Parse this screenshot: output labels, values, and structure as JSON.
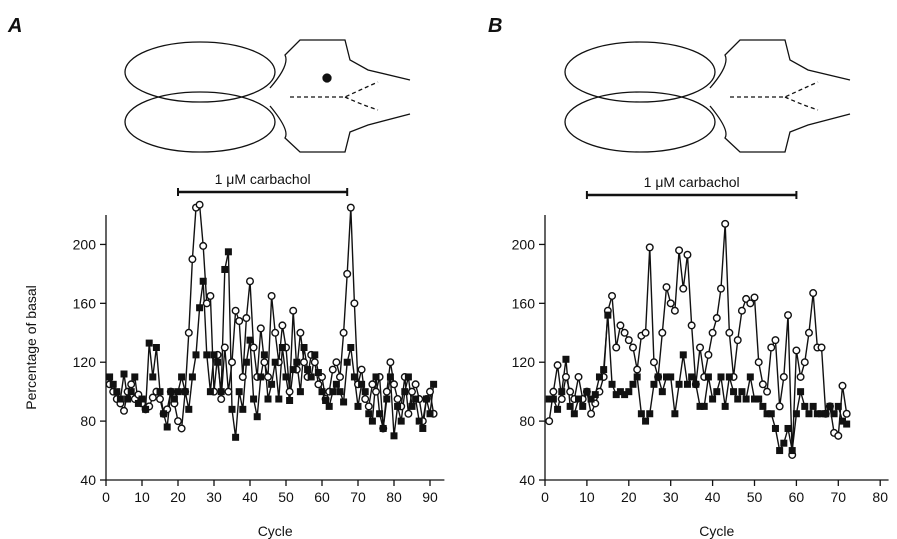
{
  "chart_data": [
    {
      "type": "line",
      "panel_label": "A",
      "annotation": {
        "text": "1 μM carbachol",
        "x_range": [
          20,
          67
        ]
      },
      "xlabel": "Cycle",
      "ylabel": "Percentage of basal",
      "xlim": [
        0,
        94
      ],
      "xticks": [
        0,
        10,
        20,
        30,
        40,
        50,
        60,
        70,
        80,
        90
      ],
      "ylim": [
        40,
        220
      ],
      "yticks": [
        40,
        80,
        120,
        160,
        200
      ],
      "x": [
        1,
        2,
        3,
        4,
        5,
        6,
        7,
        8,
        9,
        10,
        11,
        12,
        13,
        14,
        15,
        16,
        17,
        18,
        19,
        20,
        21,
        22,
        23,
        24,
        25,
        26,
        27,
        28,
        29,
        30,
        31,
        32,
        33,
        34,
        35,
        36,
        37,
        38,
        39,
        40,
        41,
        42,
        43,
        44,
        45,
        46,
        47,
        48,
        49,
        50,
        51,
        52,
        53,
        54,
        55,
        56,
        57,
        58,
        59,
        60,
        61,
        62,
        63,
        64,
        65,
        66,
        67,
        68,
        69,
        70,
        71,
        72,
        73,
        74,
        75,
        76,
        77,
        78,
        79,
        80,
        81,
        82,
        83,
        84,
        85,
        86,
        87,
        88,
        89,
        90,
        91
      ],
      "series": [
        {
          "marker": "circle-open",
          "color": "#111111",
          "values": [
            105,
            100,
            95,
            92,
            87,
            100,
            105,
            95,
            98,
            92,
            88,
            90,
            96,
            100,
            95,
            85,
            88,
            100,
            92,
            80,
            75,
            100,
            140,
            190,
            225,
            227,
            199,
            160,
            165,
            100,
            125,
            95,
            130,
            100,
            120,
            155,
            148,
            110,
            150,
            175,
            130,
            110,
            143,
            120,
            110,
            165,
            140,
            120,
            145,
            130,
            100,
            155,
            115,
            140,
            120,
            110,
            125,
            120,
            105,
            110,
            95,
            100,
            115,
            120,
            110,
            140,
            180,
            225,
            160,
            105,
            115,
            95,
            90,
            105,
            100,
            110,
            75,
            100,
            120,
            105,
            95,
            90,
            110,
            85,
            100,
            105,
            95,
            80,
            95,
            100,
            85
          ]
        },
        {
          "marker": "square",
          "color": "#111111",
          "values": [
            110,
            105,
            100,
            95,
            112,
            95,
            100,
            110,
            92,
            95,
            88,
            133,
            110,
            130,
            100,
            85,
            76,
            100,
            95,
            100,
            110,
            100,
            88,
            110,
            125,
            157,
            175,
            125,
            100,
            125,
            120,
            100,
            183,
            195,
            88,
            69,
            100,
            88,
            120,
            135,
            95,
            83,
            110,
            125,
            95,
            105,
            120,
            95,
            130,
            110,
            94,
            115,
            120,
            100,
            130,
            115,
            110,
            125,
            113,
            100,
            94,
            90,
            100,
            105,
            100,
            93,
            120,
            130,
            110,
            90,
            105,
            100,
            85,
            80,
            110,
            85,
            75,
            95,
            110,
            70,
            90,
            80,
            100,
            110,
            90,
            95,
            80,
            75,
            95,
            85,
            105
          ]
        }
      ]
    },
    {
      "type": "line",
      "panel_label": "B",
      "annotation": {
        "text": "1 μM carbachol",
        "x_range": [
          10,
          60
        ]
      },
      "xlabel": "Cycle",
      "xlim": [
        0,
        82
      ],
      "xticks": [
        0,
        10,
        20,
        30,
        40,
        50,
        60,
        70,
        80
      ],
      "ylim": [
        40,
        220
      ],
      "yticks": [
        40,
        80,
        120,
        160,
        200
      ],
      "x": [
        1,
        2,
        3,
        4,
        5,
        6,
        7,
        8,
        9,
        10,
        11,
        12,
        13,
        14,
        15,
        16,
        17,
        18,
        19,
        20,
        21,
        22,
        23,
        24,
        25,
        26,
        27,
        28,
        29,
        30,
        31,
        32,
        33,
        34,
        35,
        36,
        37,
        38,
        39,
        40,
        41,
        42,
        43,
        44,
        45,
        46,
        47,
        48,
        49,
        50,
        51,
        52,
        53,
        54,
        55,
        56,
        57,
        58,
        59,
        60,
        61,
        62,
        63,
        64,
        65,
        66,
        67,
        68,
        69,
        70,
        71,
        72
      ],
      "series": [
        {
          "marker": "circle-open",
          "color": "#111111",
          "values": [
            80,
            100,
            118,
            95,
            110,
            100,
            95,
            110,
            95,
            100,
            85,
            92,
            100,
            110,
            155,
            165,
            130,
            145,
            140,
            135,
            130,
            115,
            138,
            140,
            198,
            120,
            110,
            140,
            171,
            160,
            155,
            196,
            170,
            193,
            145,
            105,
            130,
            110,
            125,
            140,
            150,
            170,
            214,
            140,
            110,
            135,
            155,
            163,
            160,
            164,
            120,
            105,
            100,
            130,
            135,
            90,
            110,
            152,
            57,
            128,
            110,
            120,
            140,
            167,
            130,
            130,
            85,
            90,
            72,
            70,
            104,
            85
          ]
        },
        {
          "marker": "square",
          "color": "#111111",
          "values": [
            95,
            95,
            88,
            100,
            122,
            90,
            85,
            95,
            90,
            100,
            95,
            98,
            110,
            115,
            152,
            105,
            98,
            100,
            98,
            100,
            105,
            110,
            85,
            80,
            85,
            105,
            110,
            100,
            110,
            110,
            85,
            105,
            125,
            105,
            110,
            105,
            90,
            90,
            110,
            95,
            100,
            110,
            90,
            110,
            100,
            95,
            100,
            95,
            110,
            95,
            95,
            90,
            85,
            85,
            75,
            60,
            65,
            75,
            60,
            85,
            100,
            90,
            85,
            90,
            85,
            85,
            85,
            90,
            85,
            90,
            80,
            78
          ]
        }
      ]
    }
  ]
}
